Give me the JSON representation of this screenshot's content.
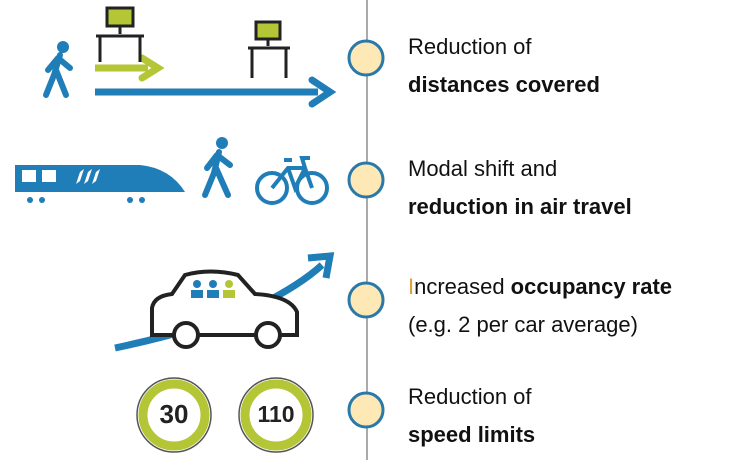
{
  "items": [
    {
      "lines": [
        [
          {
            "text": "Reduction of",
            "bold": false
          }
        ],
        [
          {
            "text": "distances covered",
            "bold": true
          }
        ]
      ]
    },
    {
      "lines": [
        [
          {
            "text": "Modal shift and",
            "bold": false
          }
        ],
        [
          {
            "text": "reduction in air travel",
            "bold": true
          }
        ]
      ]
    },
    {
      "lines": [
        [
          {
            "text": "Increased",
            "bold": false
          },
          {
            "text": "occupancy rate",
            "bold": true
          }
        ],
        [
          {
            "text": "(e.g. 2 per car average)",
            "bold": false
          }
        ]
      ]
    },
    {
      "lines": [
        [
          {
            "text": "Reduction of",
            "bold": false
          }
        ],
        [
          {
            "text": "speed limits",
            "bold": true
          }
        ]
      ]
    }
  ],
  "signs": [
    "30",
    "110"
  ]
}
